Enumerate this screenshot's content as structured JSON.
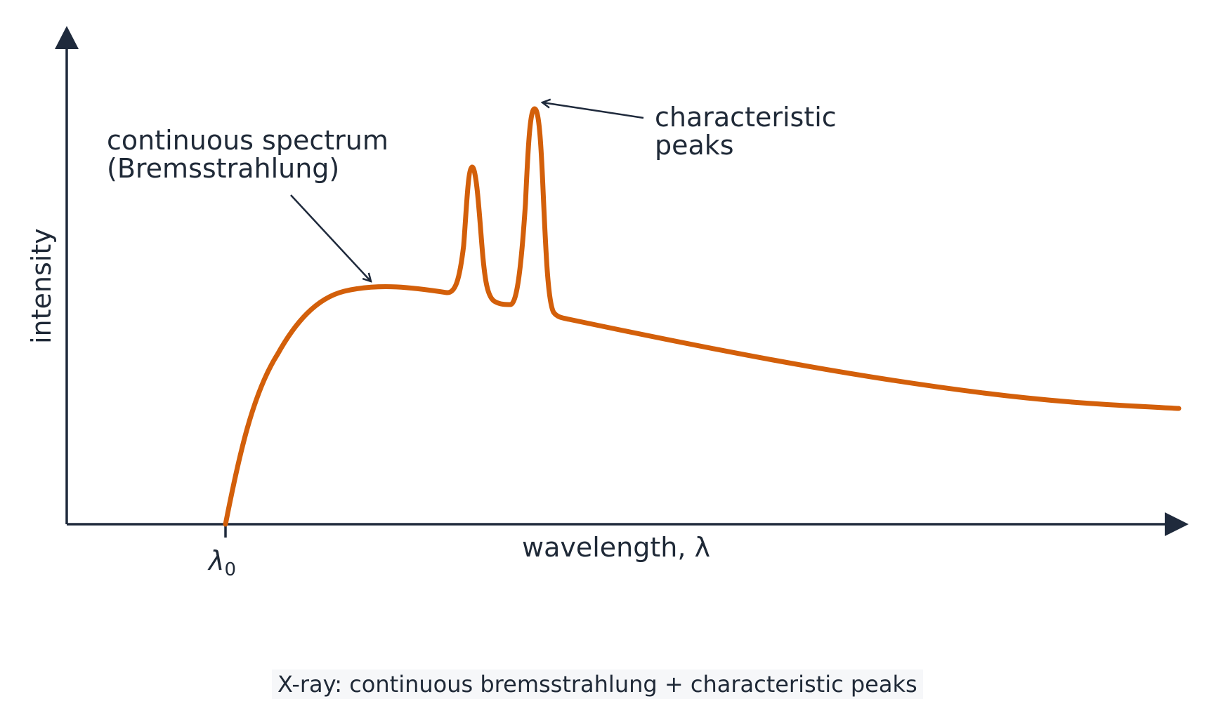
{
  "diagram": {
    "y_axis_label": "intensity",
    "x_axis_label": "wavelength, λ",
    "tick_label": {
      "symbol": "λ",
      "subscript": "0"
    },
    "annotations": {
      "continuous": {
        "line1": "continuous spectrum",
        "line2": "(Bremsstrahlung)"
      },
      "peaks": {
        "line1": "characteristic",
        "line2": "peaks"
      }
    },
    "caption": "X-ray: continuous bremsstrahlung + characteristic peaks"
  },
  "colors": {
    "curve": "#d35f0a",
    "axes": "#1f2a3c",
    "text": "#1f2937",
    "caption_bg": "#f6f7f9"
  }
}
